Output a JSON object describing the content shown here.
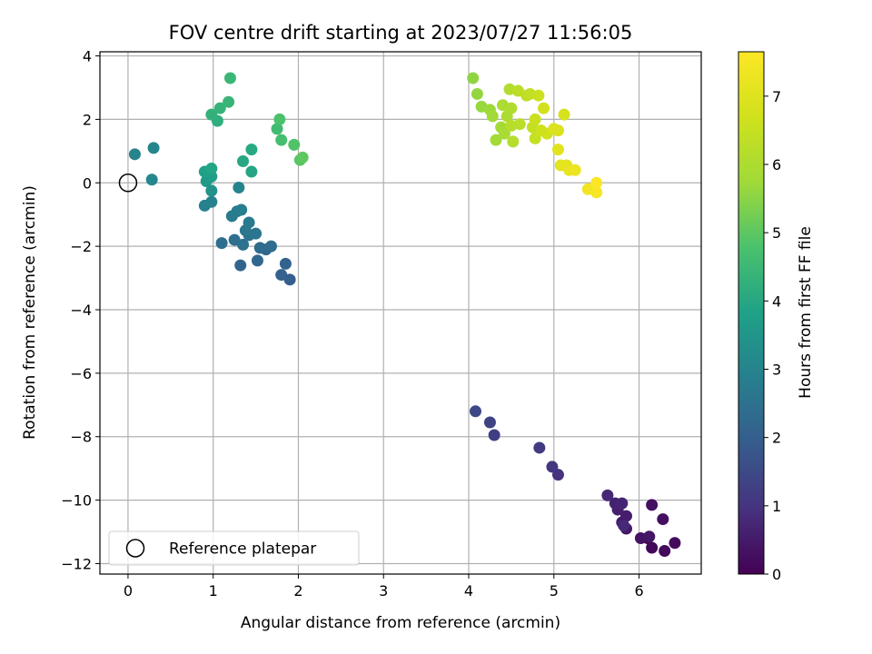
{
  "chart_data": {
    "type": "scatter",
    "title": "FOV centre drift starting at 2023/07/27 11:56:05",
    "xlabel": "Angular distance from reference (arcmin)",
    "ylabel": "Rotation from reference (arcmin)",
    "xlim": [
      -0.33,
      6.73
    ],
    "ylim": [
      -12.33,
      4.13
    ],
    "xticks": [
      0,
      1,
      2,
      3,
      4,
      5,
      6
    ],
    "yticks": [
      -12,
      -10,
      -8,
      -6,
      -4,
      -2,
      0,
      2,
      4
    ],
    "grid": true,
    "colormap": "viridis",
    "colorbar": {
      "label": "Hours from first FF file",
      "min": 0,
      "max": 7.65,
      "ticks": [
        0,
        1,
        2,
        3,
        4,
        5,
        6,
        7
      ]
    },
    "legend": {
      "position": "lower-left",
      "entries": [
        "Reference platepar"
      ]
    },
    "reference_marker": {
      "x": 0,
      "y": 0
    },
    "points": [
      {
        "x": 6.1,
        "y": -11.2,
        "c": 0.05
      },
      {
        "x": 6.15,
        "y": -11.5,
        "c": 0.1
      },
      {
        "x": 6.3,
        "y": -11.6,
        "c": 0.15
      },
      {
        "x": 6.42,
        "y": -11.35,
        "c": 0.2
      },
      {
        "x": 6.28,
        "y": -10.6,
        "c": 0.25
      },
      {
        "x": 6.15,
        "y": -10.15,
        "c": 0.3
      },
      {
        "x": 6.02,
        "y": -11.2,
        "c": 0.35
      },
      {
        "x": 6.12,
        "y": -11.15,
        "c": 0.4
      },
      {
        "x": 5.85,
        "y": -10.9,
        "c": 0.45
      },
      {
        "x": 5.8,
        "y": -10.7,
        "c": 0.5
      },
      {
        "x": 5.85,
        "y": -10.5,
        "c": 0.55
      },
      {
        "x": 5.75,
        "y": -10.3,
        "c": 0.6
      },
      {
        "x": 5.72,
        "y": -10.1,
        "c": 0.65
      },
      {
        "x": 5.8,
        "y": -10.1,
        "c": 0.7
      },
      {
        "x": 5.63,
        "y": -9.85,
        "c": 0.75
      },
      {
        "x": 5.82,
        "y": -10.8,
        "c": 0.8
      },
      {
        "x": 5.05,
        "y": -9.2,
        "c": 0.95
      },
      {
        "x": 4.98,
        "y": -8.95,
        "c": 1.05
      },
      {
        "x": 4.83,
        "y": -8.35,
        "c": 1.15
      },
      {
        "x": 4.3,
        "y": -7.95,
        "c": 1.25
      },
      {
        "x": 4.25,
        "y": -7.55,
        "c": 1.35
      },
      {
        "x": 4.08,
        "y": -7.2,
        "c": 1.45
      },
      {
        "x": 1.9,
        "y": -3.05,
        "c": 2.0
      },
      {
        "x": 1.8,
        "y": -2.9,
        "c": 2.05
      },
      {
        "x": 1.85,
        "y": -2.55,
        "c": 2.1
      },
      {
        "x": 1.32,
        "y": -2.6,
        "c": 2.15
      },
      {
        "x": 1.52,
        "y": -2.45,
        "c": 2.2
      },
      {
        "x": 1.62,
        "y": -2.1,
        "c": 2.25
      },
      {
        "x": 1.55,
        "y": -2.05,
        "c": 2.3
      },
      {
        "x": 1.68,
        "y": -2.0,
        "c": 2.35
      },
      {
        "x": 1.1,
        "y": -1.9,
        "c": 2.4
      },
      {
        "x": 1.25,
        "y": -1.8,
        "c": 2.45
      },
      {
        "x": 1.35,
        "y": -1.95,
        "c": 2.5
      },
      {
        "x": 1.42,
        "y": -1.65,
        "c": 2.55
      },
      {
        "x": 1.5,
        "y": -1.6,
        "c": 2.6
      },
      {
        "x": 1.38,
        "y": -1.5,
        "c": 2.65
      },
      {
        "x": 1.42,
        "y": -1.25,
        "c": 2.7
      },
      {
        "x": 1.22,
        "y": -1.05,
        "c": 2.75
      },
      {
        "x": 1.28,
        "y": -0.9,
        "c": 2.8
      },
      {
        "x": 1.33,
        "y": -0.85,
        "c": 2.85
      },
      {
        "x": 0.9,
        "y": -0.72,
        "c": 2.9
      },
      {
        "x": 0.98,
        "y": -0.6,
        "c": 2.95
      },
      {
        "x": 1.3,
        "y": -0.15,
        "c": 3.0
      },
      {
        "x": 0.08,
        "y": 0.9,
        "c": 3.0
      },
      {
        "x": 0.3,
        "y": 1.1,
        "c": 3.05
      },
      {
        "x": 0.28,
        "y": 0.1,
        "c": 3.1
      },
      {
        "x": 0.98,
        "y": -0.25,
        "c": 3.4
      },
      {
        "x": 0.92,
        "y": 0.05,
        "c": 3.6
      },
      {
        "x": 0.98,
        "y": 0.2,
        "c": 3.7
      },
      {
        "x": 0.9,
        "y": 0.35,
        "c": 3.8
      },
      {
        "x": 0.98,
        "y": 0.45,
        "c": 3.9
      },
      {
        "x": 1.45,
        "y": 0.35,
        "c": 3.95
      },
      {
        "x": 1.35,
        "y": 0.68,
        "c": 4.0
      },
      {
        "x": 1.45,
        "y": 1.05,
        "c": 4.05
      },
      {
        "x": 1.05,
        "y": 1.95,
        "c": 4.2
      },
      {
        "x": 0.98,
        "y": 2.15,
        "c": 4.3
      },
      {
        "x": 1.08,
        "y": 2.35,
        "c": 4.35
      },
      {
        "x": 1.18,
        "y": 2.55,
        "c": 4.4
      },
      {
        "x": 1.2,
        "y": 3.3,
        "c": 4.45
      },
      {
        "x": 1.75,
        "y": 1.7,
        "c": 4.6
      },
      {
        "x": 1.8,
        "y": 1.35,
        "c": 4.7
      },
      {
        "x": 1.78,
        "y": 2.0,
        "c": 4.8
      },
      {
        "x": 1.95,
        "y": 1.2,
        "c": 4.85
      },
      {
        "x": 2.02,
        "y": 0.72,
        "c": 4.95
      },
      {
        "x": 2.05,
        "y": 0.8,
        "c": 5.0
      },
      {
        "x": 4.05,
        "y": 3.3,
        "c": 5.55
      },
      {
        "x": 4.1,
        "y": 2.8,
        "c": 5.6
      },
      {
        "x": 4.15,
        "y": 2.4,
        "c": 5.65
      },
      {
        "x": 4.25,
        "y": 2.3,
        "c": 5.7
      },
      {
        "x": 4.28,
        "y": 2.1,
        "c": 5.75
      },
      {
        "x": 4.32,
        "y": 1.35,
        "c": 5.8
      },
      {
        "x": 4.38,
        "y": 1.75,
        "c": 5.85
      },
      {
        "x": 4.42,
        "y": 1.55,
        "c": 5.9
      },
      {
        "x": 4.4,
        "y": 2.45,
        "c": 5.95
      },
      {
        "x": 4.45,
        "y": 2.1,
        "c": 6.0
      },
      {
        "x": 4.5,
        "y": 2.35,
        "c": 6.05
      },
      {
        "x": 4.48,
        "y": 2.95,
        "c": 6.1
      },
      {
        "x": 4.52,
        "y": 1.3,
        "c": 6.15
      },
      {
        "x": 4.5,
        "y": 1.8,
        "c": 6.2
      },
      {
        "x": 4.6,
        "y": 1.85,
        "c": 6.25
      },
      {
        "x": 4.58,
        "y": 2.9,
        "c": 6.3
      },
      {
        "x": 4.68,
        "y": 2.75,
        "c": 6.35
      },
      {
        "x": 4.72,
        "y": 2.8,
        "c": 6.4
      },
      {
        "x": 4.75,
        "y": 1.75,
        "c": 6.45
      },
      {
        "x": 4.78,
        "y": 1.4,
        "c": 6.5
      },
      {
        "x": 4.78,
        "y": 2.0,
        "c": 6.55
      },
      {
        "x": 4.82,
        "y": 2.75,
        "c": 6.6
      },
      {
        "x": 4.85,
        "y": 1.65,
        "c": 6.65
      },
      {
        "x": 4.92,
        "y": 1.55,
        "c": 6.7
      },
      {
        "x": 4.88,
        "y": 2.35,
        "c": 6.75
      },
      {
        "x": 5.12,
        "y": 2.15,
        "c": 6.8
      },
      {
        "x": 5.05,
        "y": 1.65,
        "c": 6.9
      },
      {
        "x": 5.0,
        "y": 1.7,
        "c": 6.95
      },
      {
        "x": 5.05,
        "y": 1.05,
        "c": 7.05
      },
      {
        "x": 5.08,
        "y": 0.55,
        "c": 7.1
      },
      {
        "x": 5.15,
        "y": 0.55,
        "c": 7.15
      },
      {
        "x": 5.18,
        "y": 0.4,
        "c": 7.2
      },
      {
        "x": 5.25,
        "y": 0.4,
        "c": 7.3
      },
      {
        "x": 5.4,
        "y": -0.2,
        "c": 7.4
      },
      {
        "x": 5.5,
        "y": -0.3,
        "c": 7.5
      },
      {
        "x": 5.5,
        "y": 0.0,
        "c": 7.6
      }
    ]
  }
}
